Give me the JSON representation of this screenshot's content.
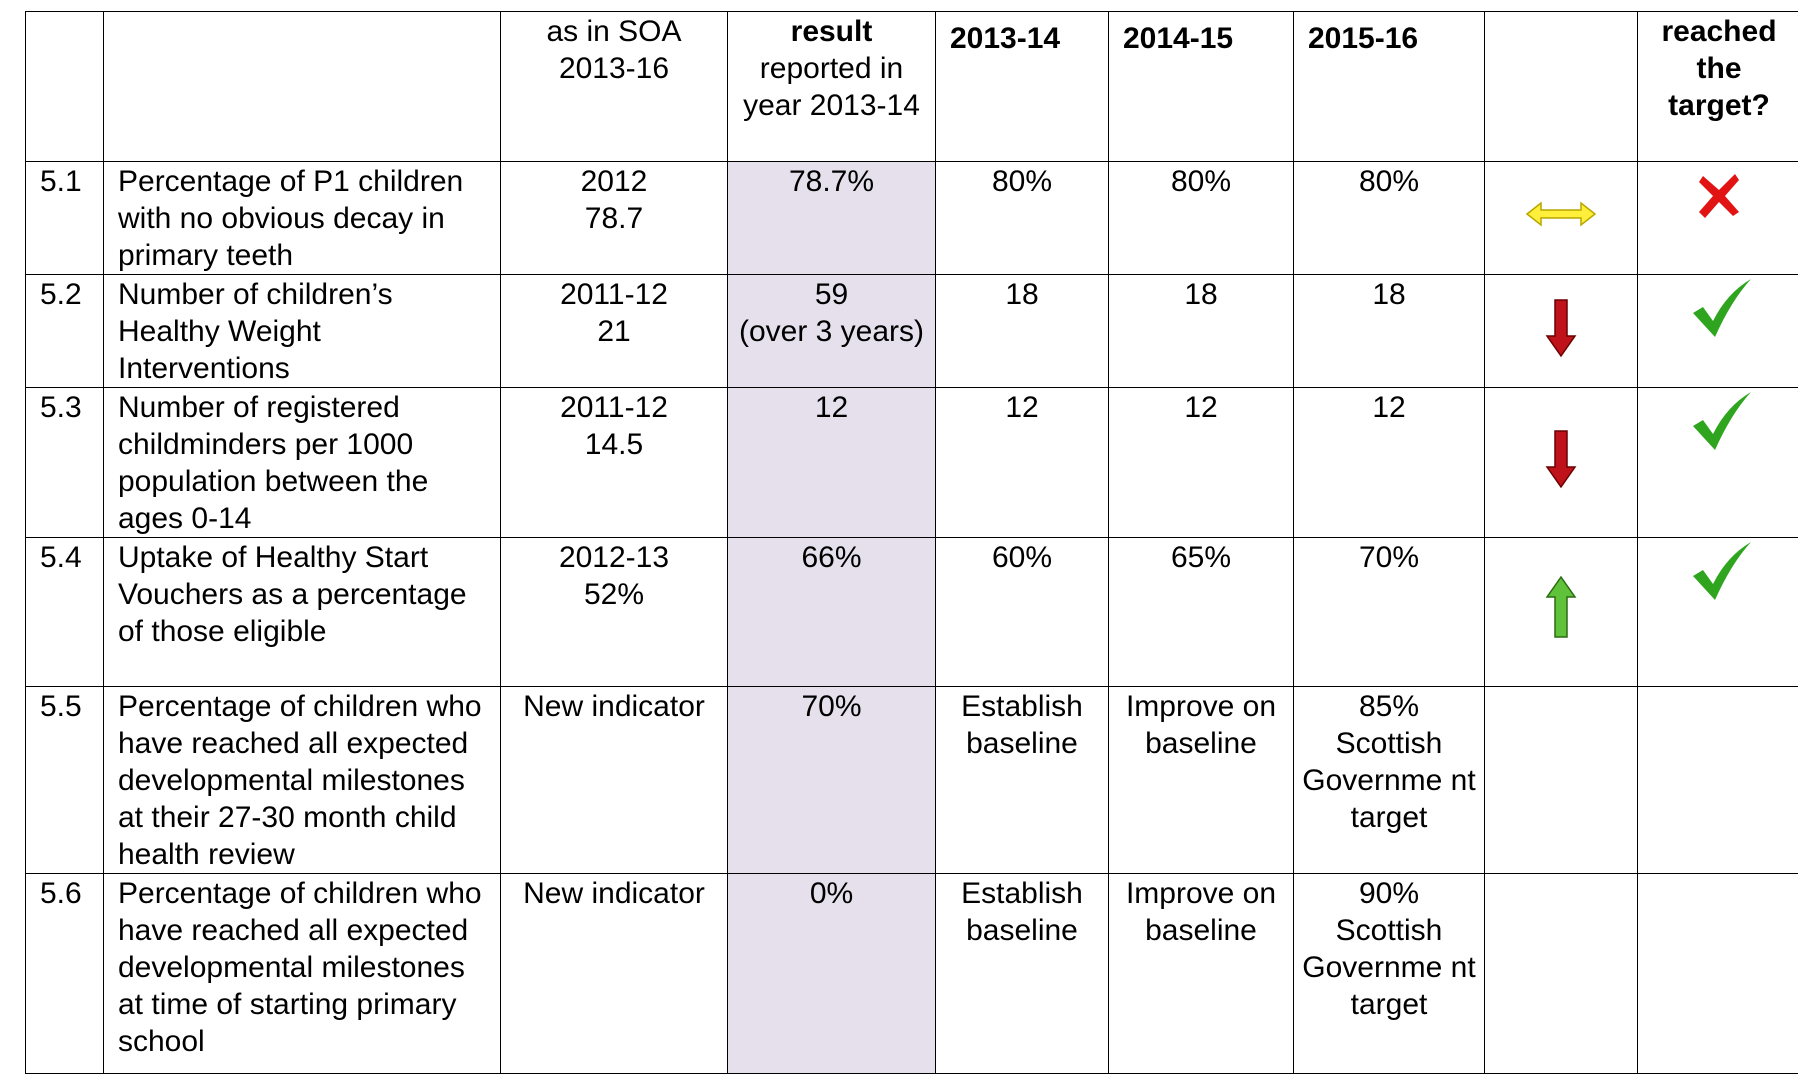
{
  "header": {
    "cells": [
      "",
      "",
      "as in SOA 2013-16",
      "",
      "2013-14",
      "2014-15",
      "2015-16",
      "",
      "reached the target?"
    ],
    "result_bold": "result",
    "result_rest": "reported in year 2013-14"
  },
  "rows": [
    {
      "id": "5.1",
      "indicator": "Percentage of P1 children with no obvious decay in primary teeth",
      "baseline": "2012\n78.7",
      "result": "78.7%",
      "t1": "80%",
      "t2": "80%",
      "t3": "80%",
      "trend": "same",
      "reached": "no"
    },
    {
      "id": "5.2",
      "indicator": "Number of children’s Healthy Weight Interventions",
      "baseline": "2011-12\n21",
      "result": "59\n(over 3 years)",
      "t1": "18",
      "t2": "18",
      "t3": "18",
      "trend": "down",
      "reached": "yes"
    },
    {
      "id": "5.3",
      "indicator": "Number of registered childminders per 1000 population between the ages 0-14",
      "baseline": "2011-12\n14.5",
      "result": "12",
      "t1": "12",
      "t2": "12",
      "t3": "12",
      "trend": "down",
      "reached": "yes"
    },
    {
      "id": "5.4",
      "indicator": "Uptake of Healthy Start Vouchers as a percentage of those eligible",
      "baseline": "2012-13\n52%",
      "result": "66%",
      "t1": "60%",
      "t2": "65%",
      "t3": "70%",
      "trend": "up",
      "reached": "yes"
    },
    {
      "id": "5.5",
      "indicator": "Percentage of children who have reached all expected developmental milestones at their 27-30 month child health review",
      "baseline": "New indicator",
      "result": "70%",
      "t1": "Establish baseline",
      "t2": "Improve on baseline",
      "t3": "85%\nScottish Governme nt target",
      "trend": null,
      "reached": null
    },
    {
      "id": "5.6",
      "indicator": "Percentage of children who have reached all expected developmental milestones at time of starting primary school",
      "baseline": "New indicator",
      "result": "0%",
      "t1": "Establish baseline",
      "t2": "Improve on baseline",
      "t3": "90%\nScottish Governme nt target",
      "trend": null,
      "reached": null
    }
  ]
}
